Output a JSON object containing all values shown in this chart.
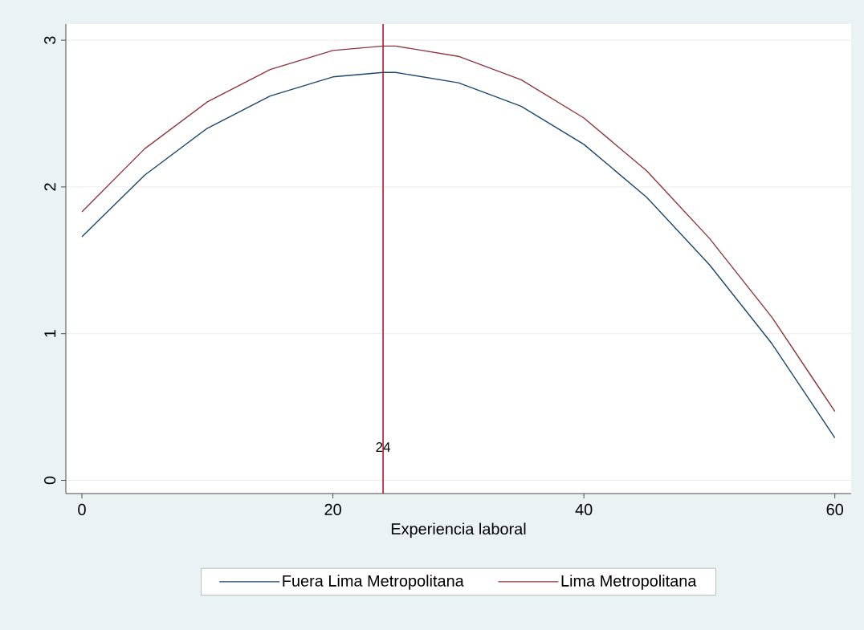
{
  "chart_data": {
    "type": "line",
    "xlabel": "Experiencia laboral",
    "x": [
      0,
      5,
      10,
      15,
      20,
      24,
      25,
      30,
      35,
      40,
      45,
      50,
      55,
      60
    ],
    "series": [
      {
        "name": "Fuera Lima Metropolitana",
        "color": "#1a476f",
        "values": [
          1.66,
          2.08,
          2.4,
          2.62,
          2.75,
          2.78,
          2.78,
          2.71,
          2.55,
          2.29,
          1.93,
          1.47,
          0.93,
          0.29
        ]
      },
      {
        "name": "Lima Metropolitana",
        "color": "#90353b",
        "values": [
          1.83,
          2.26,
          2.58,
          2.8,
          2.93,
          2.96,
          2.96,
          2.89,
          2.73,
          2.47,
          2.11,
          1.65,
          1.11,
          0.47
        ]
      }
    ],
    "xlim": [
      -1.28,
      61.3
    ],
    "ylim": [
      -0.09,
      3.11
    ],
    "xticks": [
      0,
      20,
      40,
      60
    ],
    "yticks": [
      0,
      1,
      2,
      3
    ],
    "ref_lines": [
      {
        "axis": "x",
        "value": 24,
        "label": "24",
        "color": "#b2182b"
      }
    ],
    "grid": "y",
    "legend": "bottom",
    "marker": "none",
    "line_style": "solid"
  }
}
